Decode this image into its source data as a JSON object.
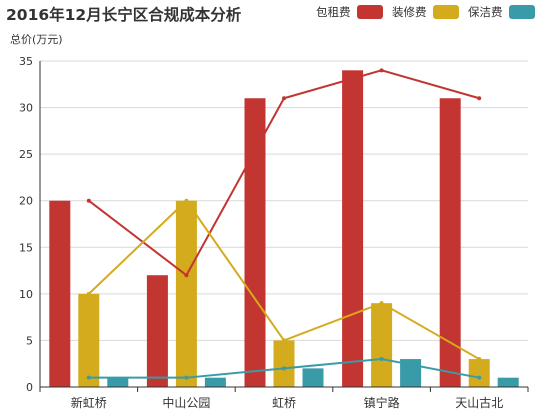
{
  "chart_data": {
    "type": "bar",
    "title": "2016年12月长宁区合规成本分析",
    "ylabel": "总价(万元)",
    "xlabel": "",
    "categories": [
      "新虹桥",
      "中山公园",
      "虹桥",
      "镇宁路",
      "天山古北"
    ],
    "ylim": [
      0,
      35
    ],
    "yticks": [
      0,
      5,
      10,
      15,
      20,
      25,
      30,
      35
    ],
    "grid": true,
    "legend_position": "top-right",
    "series": [
      {
        "name": "包租费",
        "color": "#c23531",
        "values": [
          20,
          12,
          31,
          34,
          31
        ]
      },
      {
        "name": "装修费",
        "color": "#d4ab1c",
        "values": [
          10,
          20,
          5,
          9,
          3
        ]
      },
      {
        "name": "保洁费",
        "color": "#3a9ba8",
        "values": [
          1,
          1,
          2,
          3,
          1
        ]
      }
    ]
  }
}
